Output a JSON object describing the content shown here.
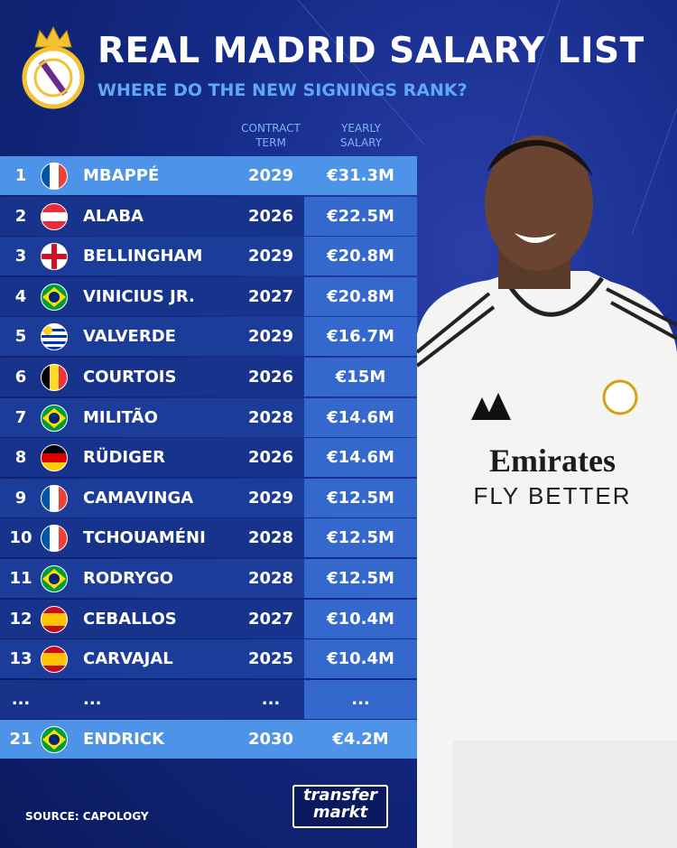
{
  "header": {
    "title": "REAL MADRID SALARY LIST",
    "subtitle": "WHERE DO THE NEW SIGNINGS RANK?"
  },
  "table": {
    "columns": [
      "CONTRACT TERM",
      "YEARLY SALARY"
    ],
    "rows": [
      [
        "1",
        "MBAPPÉ",
        "2029",
        "€31.3M"
      ],
      [
        "2",
        "ALABA",
        "2026",
        "€22.5M"
      ],
      [
        "3",
        "BELLINGHAM",
        "2029",
        "€20.8M"
      ],
      [
        "4",
        "VINICIUS JR.",
        "2027",
        "€20.8M"
      ],
      [
        "5",
        "VALVERDE",
        "2029",
        "€16.7M"
      ],
      [
        "6",
        "COURTOIS",
        "2026",
        "€15M"
      ],
      [
        "7",
        "MILITÃO",
        "2028",
        "€14.6M"
      ],
      [
        "8",
        "RÜDIGER",
        "2026",
        "€14.6M"
      ],
      [
        "9",
        "CAMAVINGA",
        "2029",
        "€12.5M"
      ],
      [
        "10",
        "TCHOUAMÉNI",
        "2028",
        "€12.5M"
      ],
      [
        "11",
        "RODRYGO",
        "2028",
        "€12.5M"
      ],
      [
        "12",
        "CEBALLOS",
        "2027",
        "€10.4M"
      ],
      [
        "13",
        "CARVAJAL",
        "2025",
        "€10.4M"
      ],
      [
        "...",
        "...",
        "...",
        "..."
      ],
      [
        "21",
        "ENDRICK",
        "2030",
        "€4.2M"
      ]
    ]
  },
  "photo": {
    "sponsor": "Emirates",
    "slogan": "FLY BETTER"
  },
  "footer": {
    "source": "SOURCE: CAPOLOGY",
    "logo": [
      "transfer",
      "markt"
    ]
  }
}
